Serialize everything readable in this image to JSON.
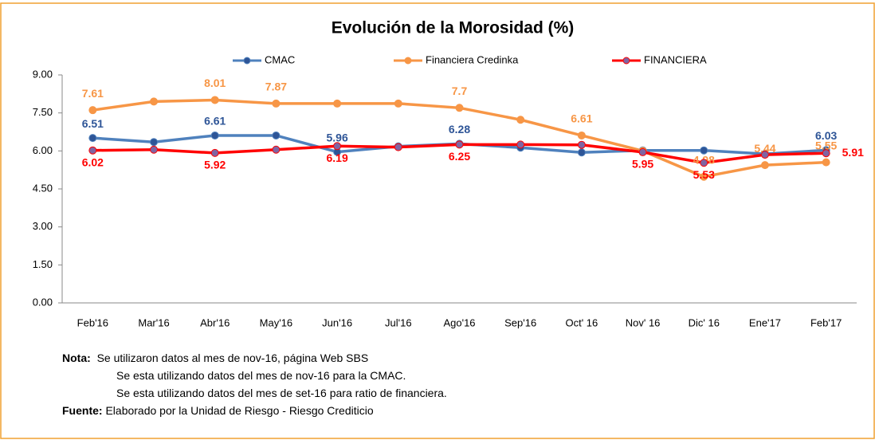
{
  "chart_data": {
    "type": "line",
    "title": "Evolución  de la Morosidad  (%)",
    "categories": [
      "Feb'16",
      "Mar'16",
      "Abr'16",
      "May'16",
      "Jun'16",
      "Jul'16",
      "Ago'16",
      "Sep'16",
      "Oct' 16",
      "Nov' 16",
      "Dic' 16",
      "Ene'17",
      "Feb'17"
    ],
    "series": [
      {
        "name": "CMAC",
        "color": "#4f81bd",
        "marker": "#2e5597",
        "values": [
          6.51,
          6.35,
          6.61,
          6.61,
          5.96,
          6.18,
          6.28,
          6.13,
          5.94,
          6.02,
          6.02,
          5.88,
          6.03
        ],
        "value_labels": [
          "6.51",
          null,
          "6.61",
          null,
          "5.96",
          null,
          "6.28",
          null,
          null,
          null,
          null,
          null,
          "6.03"
        ]
      },
      {
        "name": "Financiera Credinka",
        "color": "#f79646",
        "marker": "#f79646",
        "values": [
          7.61,
          7.95,
          8.01,
          7.87,
          7.87,
          7.87,
          7.7,
          7.23,
          6.61,
          6.0,
          4.98,
          5.44,
          5.55
        ],
        "value_labels": [
          "7.61",
          null,
          "8.01",
          "7.87",
          null,
          null,
          "7.7",
          null,
          "6.61",
          null,
          "4.98",
          "5.44",
          "5.55"
        ]
      },
      {
        "name": "FINANCIERA",
        "color": "#ff0000",
        "marker": "#8064a2",
        "values": [
          6.02,
          6.05,
          5.92,
          6.05,
          6.19,
          6.15,
          6.25,
          6.25,
          6.24,
          5.95,
          5.53,
          5.85,
          5.91
        ],
        "value_labels": [
          "6.02",
          null,
          "5.92",
          null,
          "6.19",
          null,
          "6.25",
          null,
          null,
          "5.95",
          "5.53",
          null,
          "5.91"
        ]
      }
    ],
    "ylim": [
      0,
      9
    ],
    "yticks": [
      {
        "value": 0,
        "label": "0.00"
      },
      {
        "value": 1.5,
        "label": "1.50"
      },
      {
        "value": 3,
        "label": "3.00"
      },
      {
        "value": 4.5,
        "label": "4.50"
      },
      {
        "value": 6,
        "label": "6.00"
      },
      {
        "value": 7.5,
        "label": "7.50"
      },
      {
        "value": 9,
        "label": "9.00"
      }
    ],
    "grid": false,
    "legend": "top"
  },
  "notes": {
    "nota_label": "Nota:",
    "lines": [
      "Se utilizaron datos al mes de  nov-16, página Web SBS",
      "Se esta utilizando datos del mes de nov-16 para la CMAC.",
      "Se esta utilizando datos del mes de set-16 para ratio de financiera."
    ],
    "fuente_label": "Fuente:",
    "fuente": "Elaborado  por la Unidad de Riesgo - Riesgo Crediticio"
  }
}
